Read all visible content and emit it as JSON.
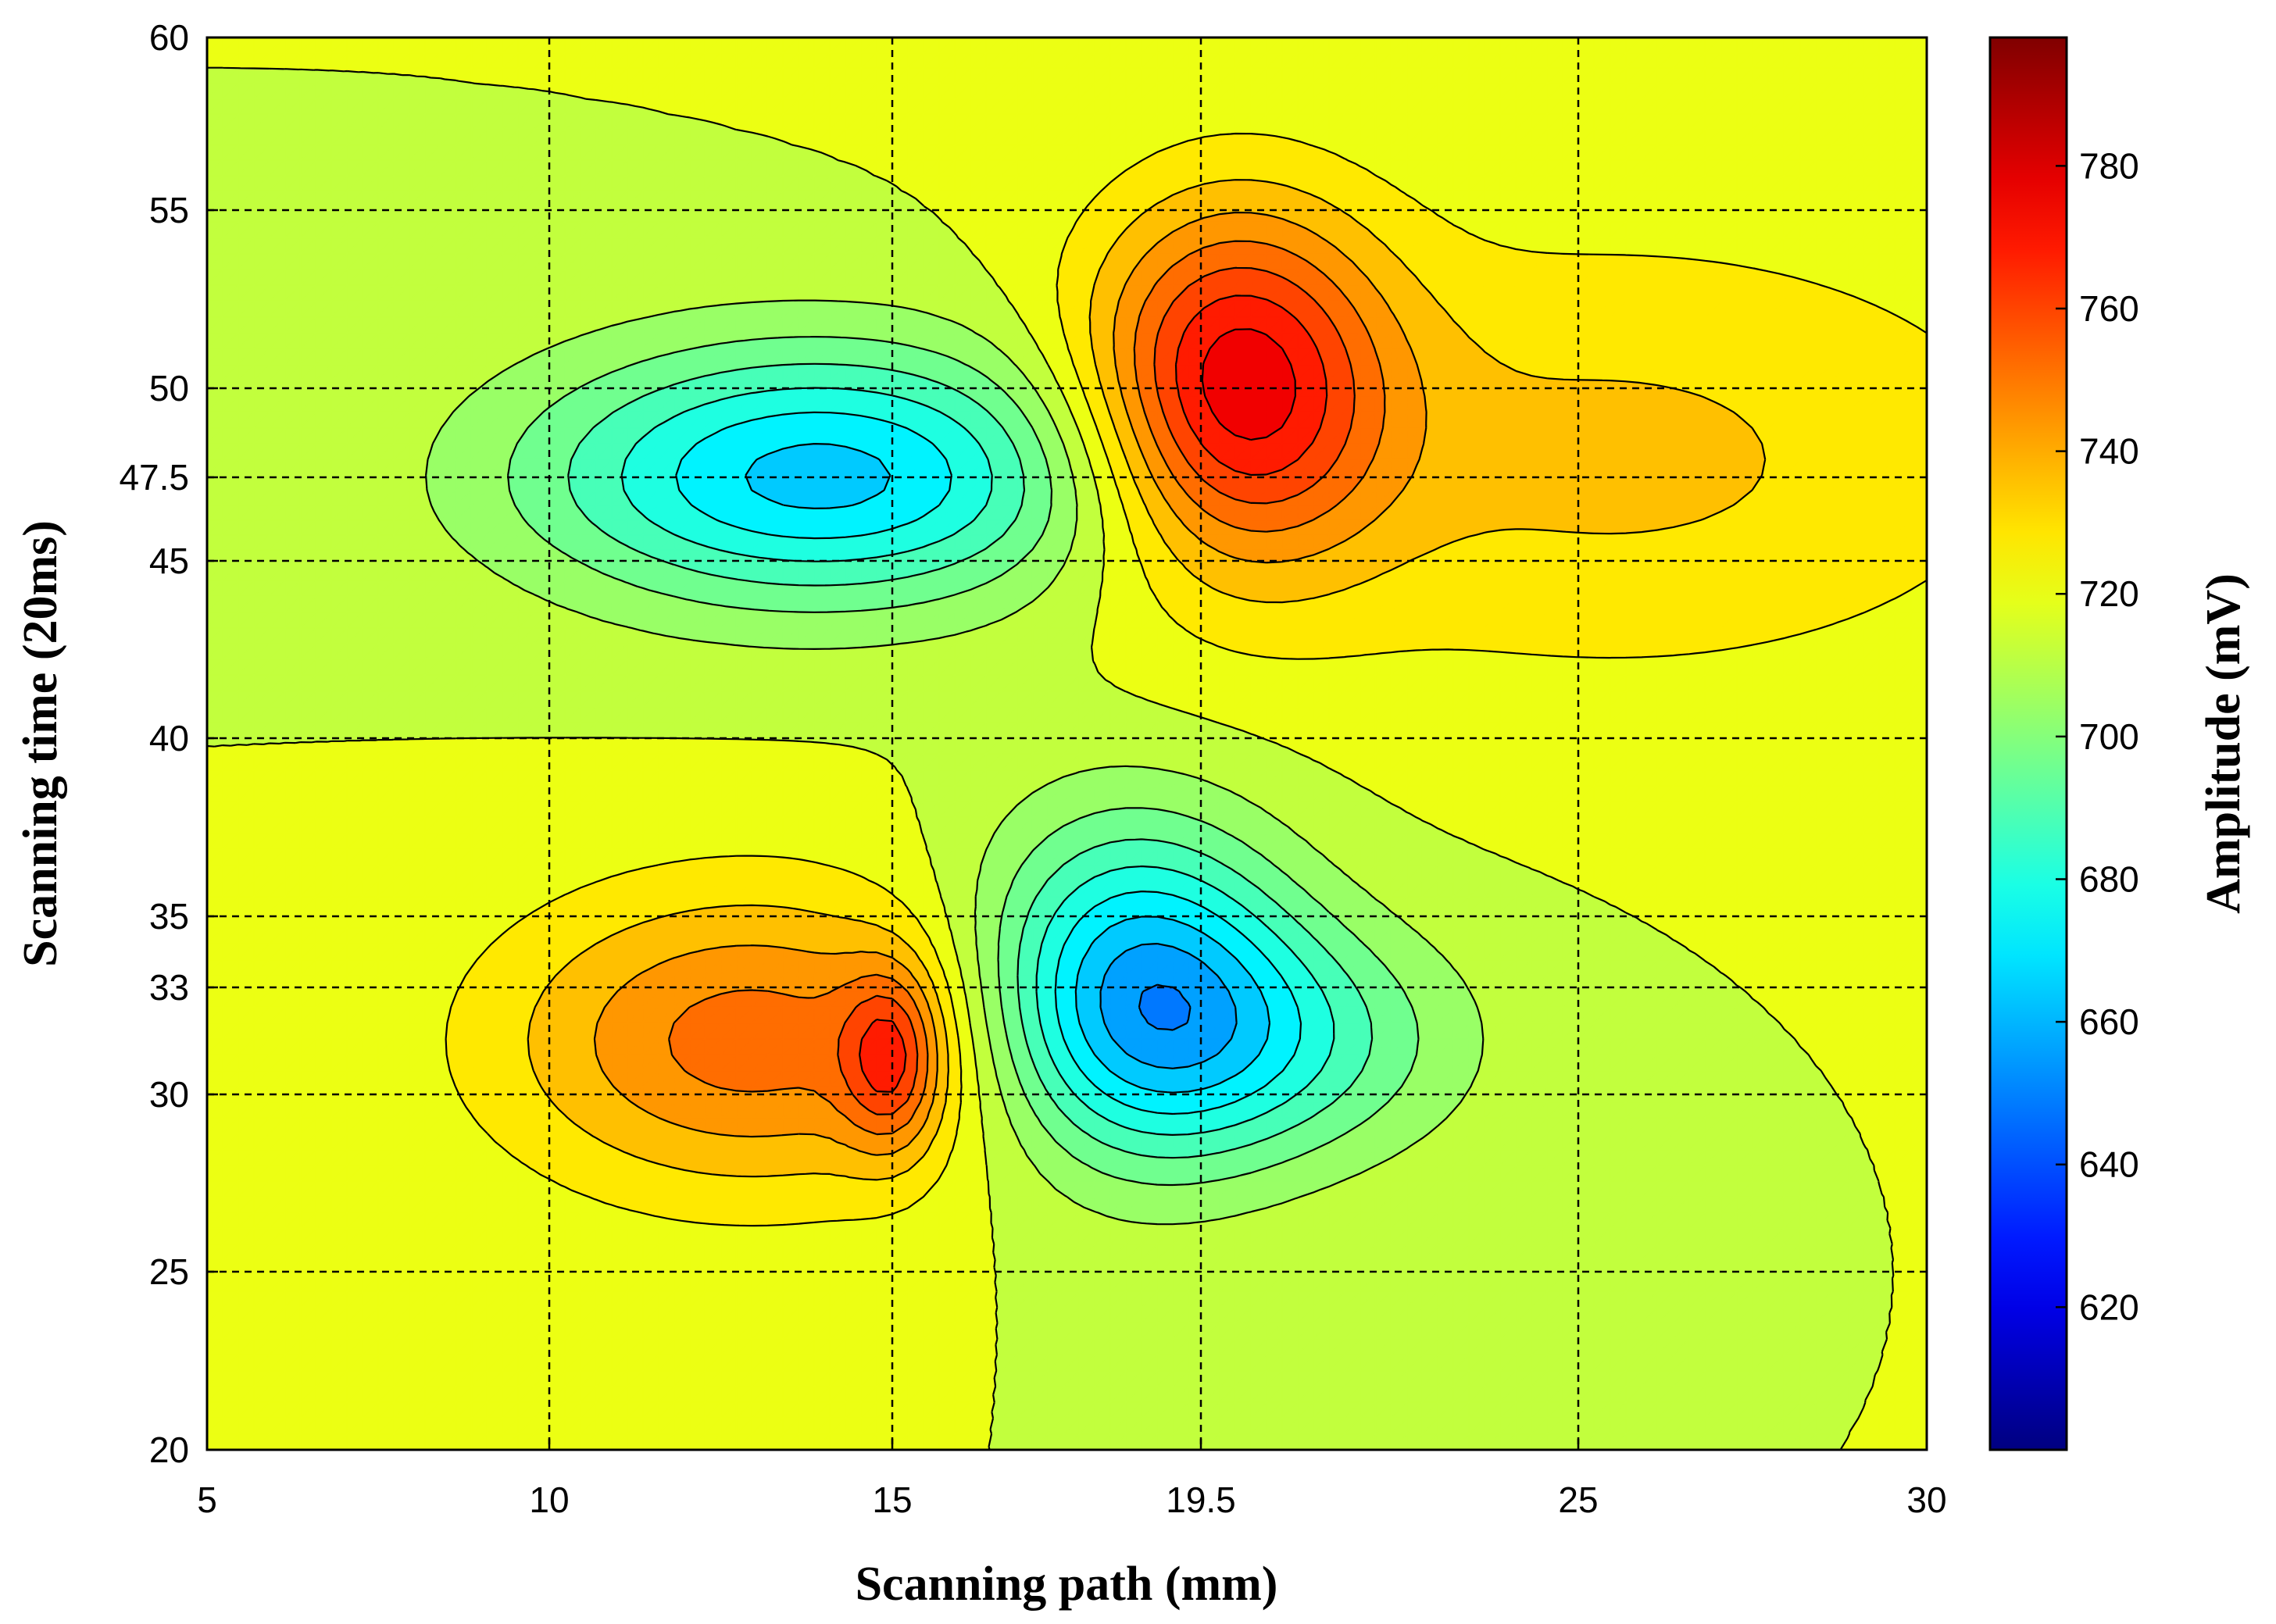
{
  "chart_data": {
    "type": "heatmap",
    "subtype": "filled-contour",
    "xlabel": "Scanning path (mm)",
    "ylabel": "Scanning time (20ms)",
    "colorbar_label": "Amplitude (mV)",
    "xlim": [
      5,
      30
    ],
    "ylim": [
      20,
      60
    ],
    "x_ticks": [
      5,
      10,
      15,
      19.5,
      25,
      30
    ],
    "y_ticks": [
      20,
      25,
      30,
      33,
      35,
      40,
      45,
      47.5,
      50,
      55,
      60
    ],
    "colorbar_range": [
      600,
      798
    ],
    "colorbar_ticks": [
      620,
      640,
      660,
      680,
      700,
      720,
      740,
      760,
      780
    ],
    "grid": true,
    "colormap": "jet",
    "contour_step": 8,
    "background_level": 716,
    "peaks": [
      {
        "label": "min",
        "x": 14,
        "y": 47.5,
        "value": 664,
        "sx": 3.0,
        "sy": 2.6,
        "shape": "gaussian"
      },
      {
        "label": "max",
        "x": 20,
        "y": 50,
        "value": 774,
        "sx": 1.5,
        "sy": 3.5,
        "shape": "gaussian"
      },
      {
        "label": "max",
        "x": 13,
        "y": 31.5,
        "value": 752,
        "sx": 2.6,
        "sy": 3.0,
        "shape": "gaussian"
      },
      {
        "label": "max",
        "x": 15,
        "y": 31.0,
        "value": 748,
        "sx": 0.5,
        "sy": 1.8,
        "shape": "gaussian"
      },
      {
        "label": "min",
        "x": 18.5,
        "y": 33,
        "value": 663,
        "sx": 1.6,
        "sy": 3.3,
        "shape": "gaussian"
      },
      {
        "label": "min",
        "x": 20.5,
        "y": 31.5,
        "value": 690,
        "sx": 2.0,
        "sy": 2.4,
        "shape": "gaussian"
      },
      {
        "label": "max",
        "x": 25.5,
        "y": 48,
        "value": 734,
        "sx": 4.5,
        "sy": 4.5,
        "shape": "gaussian"
      }
    ]
  }
}
